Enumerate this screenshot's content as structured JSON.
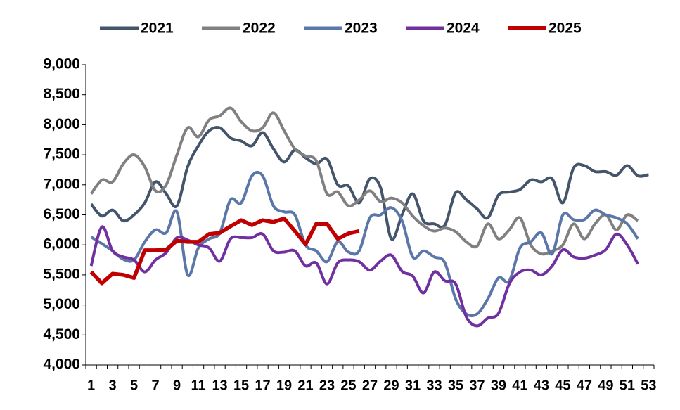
{
  "chart_data": {
    "type": "line",
    "categories": [
      1,
      null,
      3,
      null,
      5,
      null,
      7,
      null,
      9,
      null,
      11,
      null,
      13,
      null,
      15,
      null,
      17,
      null,
      19,
      null,
      21,
      null,
      23,
      null,
      25,
      null,
      27,
      null,
      29,
      null,
      31,
      null,
      33,
      null,
      35,
      null,
      37,
      null,
      39,
      null,
      41,
      null,
      43,
      null,
      45,
      null,
      47,
      null,
      49,
      null,
      51,
      null,
      53
    ],
    "ylim": [
      4000,
      9000
    ],
    "yticks": [
      {
        "value": 4000,
        "label": "4,000"
      },
      {
        "value": 4500,
        "label": "4,500"
      },
      {
        "value": 5000,
        "label": "5,000"
      },
      {
        "value": 5500,
        "label": "5,500"
      },
      {
        "value": 6000,
        "label": "6,000"
      },
      {
        "value": 6500,
        "label": "6,500"
      },
      {
        "value": 7000,
        "label": "7,000"
      },
      {
        "value": 7500,
        "label": "7,500"
      },
      {
        "value": 8000,
        "label": "8,000"
      },
      {
        "value": 8500,
        "label": "8,500"
      },
      {
        "value": 9000,
        "label": "9,000"
      }
    ],
    "legend": "top",
    "series": [
      {
        "name": "2021",
        "color": "#44546a",
        "smooth": true,
        "values": [
          6680,
          6480,
          6580,
          6400,
          6500,
          6700,
          7050,
          6850,
          6650,
          7300,
          7650,
          7900,
          7950,
          7780,
          7730,
          7650,
          7870,
          7600,
          7380,
          7580,
          7450,
          7350,
          7430,
          7000,
          6980,
          6700,
          7100,
          6950,
          6100,
          6500,
          6850,
          6400,
          6350,
          6330,
          6870,
          6750,
          6600,
          6450,
          6830,
          6880,
          6920,
          7080,
          7050,
          7100,
          6700,
          7280,
          7320,
          7220,
          7220,
          7160,
          7320,
          7150,
          7170
        ]
      },
      {
        "name": "2022",
        "color": "#808080",
        "smooth": true,
        "values": [
          6850,
          7080,
          7050,
          7350,
          7500,
          7300,
          6900,
          7000,
          7500,
          7950,
          7800,
          8080,
          8150,
          8280,
          8050,
          7900,
          7950,
          8200,
          7900,
          7600,
          7480,
          7400,
          6850,
          6880,
          6650,
          6750,
          6900,
          6720,
          6780,
          6700,
          6480,
          6320,
          6230,
          6280,
          6220,
          6050,
          5980,
          6350,
          6100,
          6250,
          6450,
          6000,
          5850,
          5900,
          6000,
          6350,
          6100,
          6350,
          6500,
          6250,
          6500,
          6400,
          null
        ]
      },
      {
        "name": "2023",
        "color": "#5b76a8",
        "smooth": true,
        "values": [
          6130,
          6020,
          5900,
          5760,
          5750,
          6050,
          6250,
          6200,
          6550,
          5500,
          5950,
          6100,
          6200,
          6750,
          6700,
          7150,
          7150,
          6650,
          6550,
          6500,
          6000,
          5900,
          5720,
          6050,
          5880,
          5900,
          6450,
          6500,
          6620,
          6400,
          5800,
          5900,
          5800,
          5700,
          5100,
          4850,
          4850,
          5100,
          5450,
          5400,
          5950,
          6050,
          6200,
          5850,
          6500,
          6420,
          6420,
          6580,
          6500,
          6450,
          6350,
          6100,
          null
        ]
      },
      {
        "name": "2024",
        "color": "#7030a0",
        "smooth": true,
        "values": [
          5650,
          6300,
          5900,
          5800,
          5750,
          5550,
          5750,
          5870,
          6120,
          6080,
          6000,
          5950,
          5730,
          6100,
          6120,
          6120,
          6180,
          5900,
          5880,
          5900,
          5650,
          5700,
          5350,
          5700,
          5750,
          5720,
          5580,
          5730,
          5830,
          5560,
          5480,
          5200,
          5550,
          5400,
          5350,
          4800,
          4650,
          4780,
          4860,
          5350,
          5550,
          5580,
          5500,
          5650,
          5920,
          5800,
          5780,
          5830,
          5920,
          6180,
          6000,
          5680,
          null
        ]
      },
      {
        "name": "2025",
        "color": "#c00000",
        "smooth": false,
        "values": [
          5550,
          5360,
          5520,
          5500,
          5450,
          5910,
          5910,
          5920,
          6070,
          6050,
          6050,
          6180,
          6200,
          6310,
          6410,
          6330,
          6410,
          6380,
          6440,
          6230,
          6010,
          6350,
          6350,
          6100,
          6190,
          6230,
          null,
          null,
          null,
          null,
          null,
          null,
          null,
          null,
          null,
          null,
          null,
          null,
          null,
          null,
          null,
          null,
          null,
          null,
          null,
          null,
          null,
          null,
          null,
          null,
          null,
          null,
          null
        ]
      }
    ]
  }
}
